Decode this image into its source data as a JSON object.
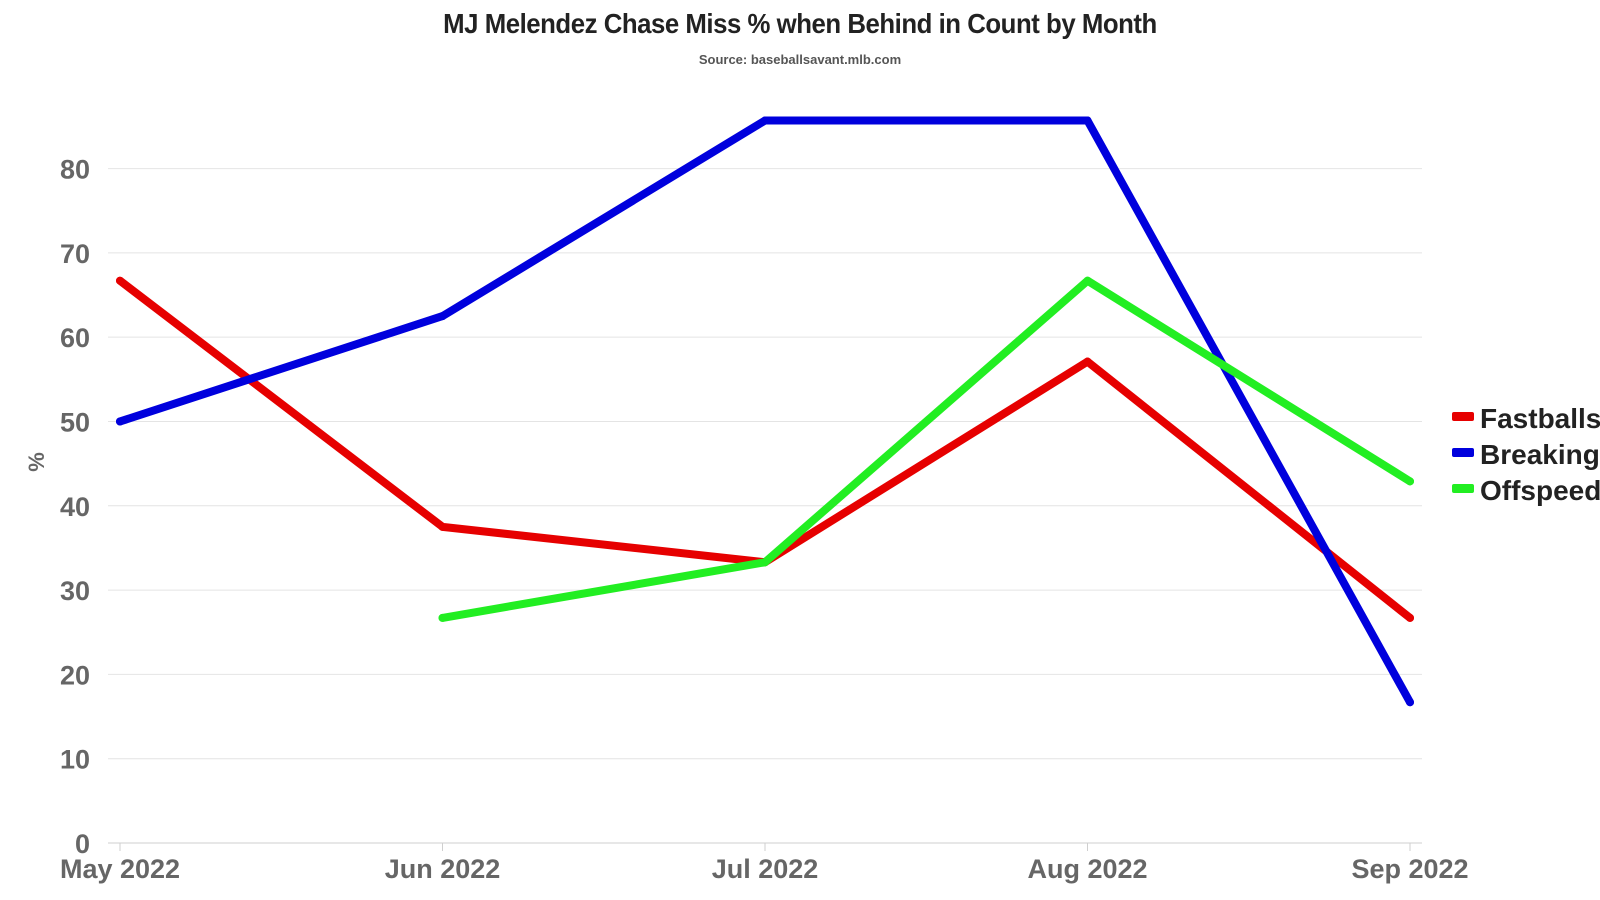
{
  "chart_data": {
    "type": "line",
    "title": "MJ Melendez Chase Miss % when Behind in Count by Month",
    "subtitle": "Source: baseballsavant.mlb.com",
    "xlabel": "",
    "ylabel": "%",
    "categories": [
      "May 2022",
      "Jun 2022",
      "Jul 2022",
      "Aug 2022",
      "Sep 2022"
    ],
    "ylim": [
      0,
      86
    ],
    "yticks": [
      0,
      10,
      20,
      30,
      40,
      50,
      60,
      70,
      80
    ],
    "grid": true,
    "legend_position": "right",
    "series": [
      {
        "name": "Fastballs",
        "color": "#e60000",
        "values": [
          66.7,
          37.5,
          33.3,
          57.1,
          26.7
        ]
      },
      {
        "name": "Breaking",
        "color": "#0000dd",
        "values": [
          50.0,
          62.5,
          85.7,
          85.7,
          16.7
        ]
      },
      {
        "name": "Offspeed",
        "color": "#22ee22",
        "values": [
          null,
          26.7,
          33.3,
          66.7,
          42.9
        ]
      }
    ]
  }
}
